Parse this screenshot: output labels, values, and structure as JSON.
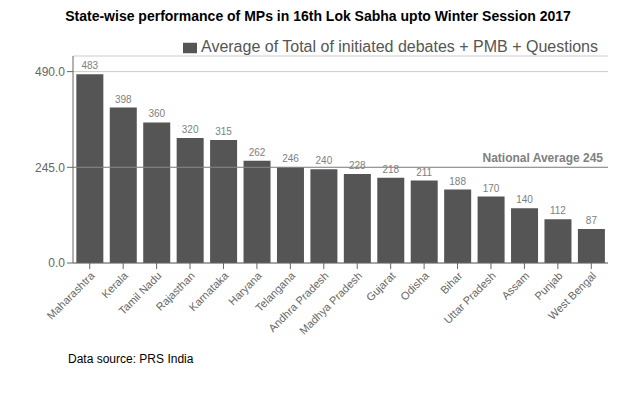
{
  "chart_data": {
    "type": "bar",
    "title": "State-wise performance of MPs in 16th Lok Sabha upto Winter Session 2017",
    "categories": [
      "Maharashtra",
      "Kerala",
      "Tamil Nadu",
      "Rajasthan",
      "Karnataka",
      "Haryana",
      "Telangana",
      "Andhra Pradesh",
      "Madhya Pradesh",
      "Gujarat",
      "Odisha",
      "Bihar",
      "Uttar Pradesh",
      "Assam",
      "Punjab",
      "West Bengal"
    ],
    "series": [
      {
        "name": "Average of Total of initiated debates + PMB + Questions",
        "color": "#555555",
        "values": [
          483,
          398,
          360,
          320,
          315,
          262,
          246,
          240,
          228,
          218,
          211,
          188,
          170,
          140,
          112,
          87
        ]
      }
    ],
    "ylim": [
      0,
      530
    ],
    "yticks": [
      {
        "value": 0,
        "label": "0.0"
      },
      {
        "value": 245,
        "label": "245.0"
      },
      {
        "value": 490,
        "label": "490.0"
      }
    ],
    "grid": true,
    "legend": "upper right",
    "data_labels": true,
    "annotations": [
      {
        "text": "National Average 245",
        "y": 245,
        "color": "#888888"
      },
      {
        "text": "Data source: PRS India"
      }
    ]
  }
}
